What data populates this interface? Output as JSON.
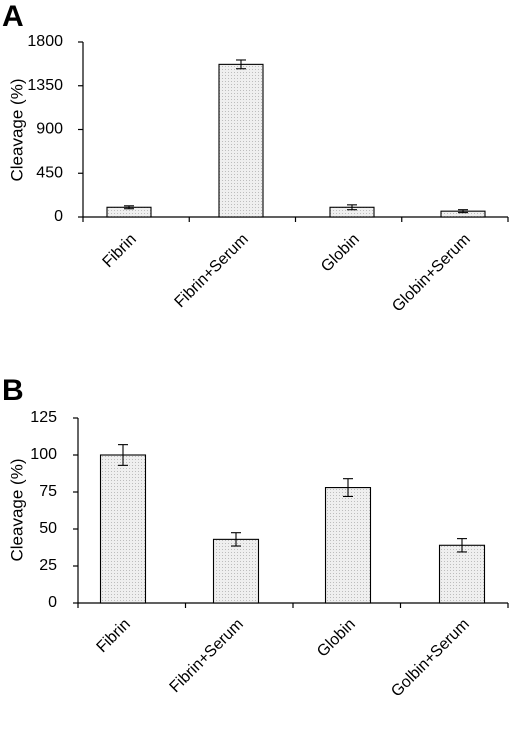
{
  "chart_data": [
    {
      "type": "bar",
      "panel": "A",
      "ylabel": "Cleavage (%)",
      "xlabel": "",
      "title": "",
      "ylim": [
        0,
        1800
      ],
      "yticks": [
        0,
        450,
        900,
        1350,
        1800
      ],
      "categories": [
        "Fibrin",
        "Fibrin+Serum",
        "Globin",
        "Globin+Serum"
      ],
      "values": [
        100,
        1570,
        100,
        60
      ],
      "errors": [
        15,
        45,
        25,
        15
      ],
      "grid": false,
      "legend": "none",
      "bar_color": "#efefef"
    },
    {
      "type": "bar",
      "panel": "B",
      "ylabel": "Cleavage (%)",
      "xlabel": "",
      "title": "",
      "ylim": [
        0,
        125
      ],
      "yticks": [
        0,
        25,
        50,
        75,
        100,
        125
      ],
      "categories": [
        "Fibrin",
        "Fibrin+Serum",
        "Globin",
        "Golbin+Serum"
      ],
      "values": [
        100,
        43,
        78,
        39
      ],
      "errors": [
        7,
        4.5,
        6,
        4.5
      ],
      "grid": false,
      "legend": "none",
      "bar_color": "#efefef"
    }
  ]
}
